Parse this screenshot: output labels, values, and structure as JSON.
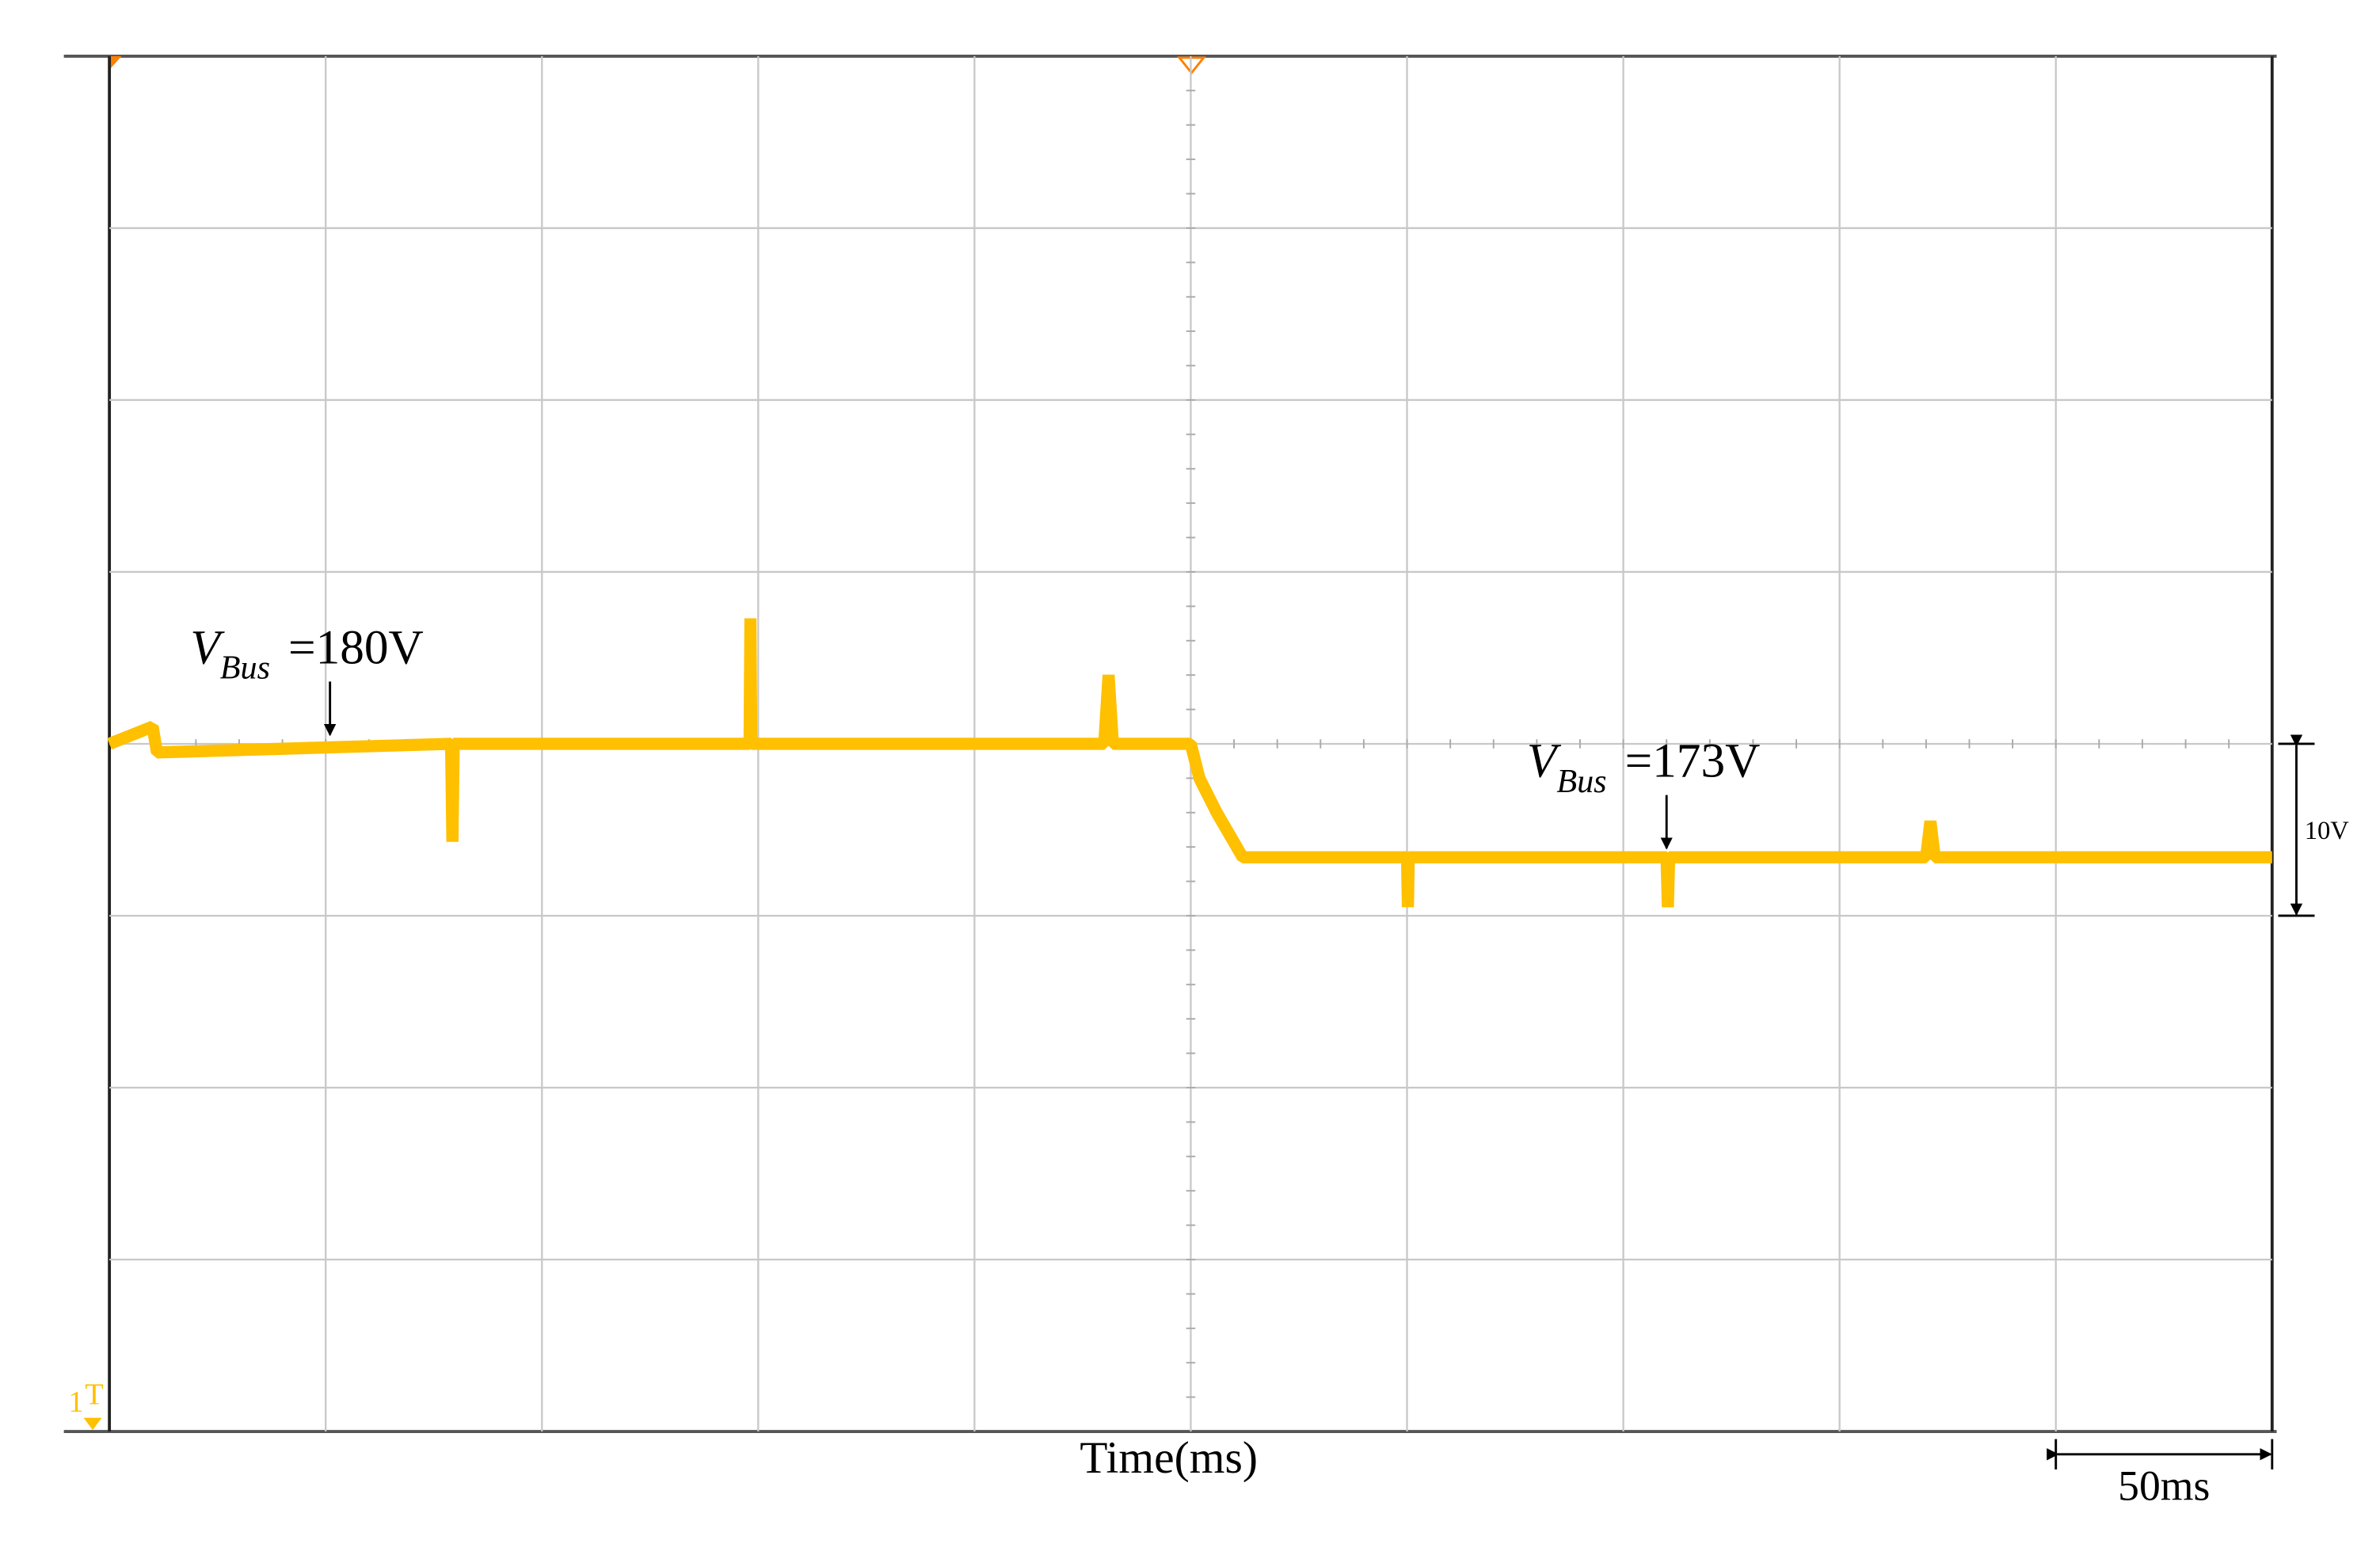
{
  "chart_data": {
    "type": "line",
    "x_label": "Time(ms)",
    "xlim": [
      0,
      500
    ],
    "ylim": [
      140,
      220
    ],
    "xticks": [
      0,
      50,
      100,
      150,
      200,
      250,
      300,
      350,
      400,
      450,
      500
    ],
    "yticks": [
      140,
      150,
      160,
      170,
      180,
      190,
      200,
      210,
      220
    ],
    "grid": true,
    "x": [
      0,
      10,
      11,
      79,
      79.3,
      79.6,
      148,
      148.2,
      148.4,
      230,
      231,
      232,
      250,
      252,
      256,
      262,
      300,
      300.2,
      300.4,
      360,
      360.3,
      360.6,
      420,
      421,
      422,
      500
    ],
    "series": [
      {
        "name": "V_Bus",
        "color": "#ffc000",
        "values": [
          180,
          181,
          179.5,
          180,
          174.3,
          180,
          180,
          187.3,
          180,
          180,
          184,
          180,
          180,
          178,
          176,
          173.4,
          173.4,
          170.5,
          173.4,
          173.4,
          170.5,
          173.4,
          173.4,
          175.5,
          173.4,
          173.4
        ]
      }
    ],
    "annotations": [
      {
        "name": "V",
        "subscript": "Bus",
        "text": "=180V",
        "x": 51,
        "y": 180
      },
      {
        "name": "V",
        "subscript": "Bus",
        "text": "=173V",
        "x": 360,
        "y": 173.4
      }
    ],
    "scale_bars": [
      {
        "label": "10V",
        "value": 10,
        "axis": "y"
      },
      {
        "label": "50ms",
        "value": 50,
        "axis": "x"
      }
    ],
    "channel": "1",
    "trigger_label": "T"
  }
}
